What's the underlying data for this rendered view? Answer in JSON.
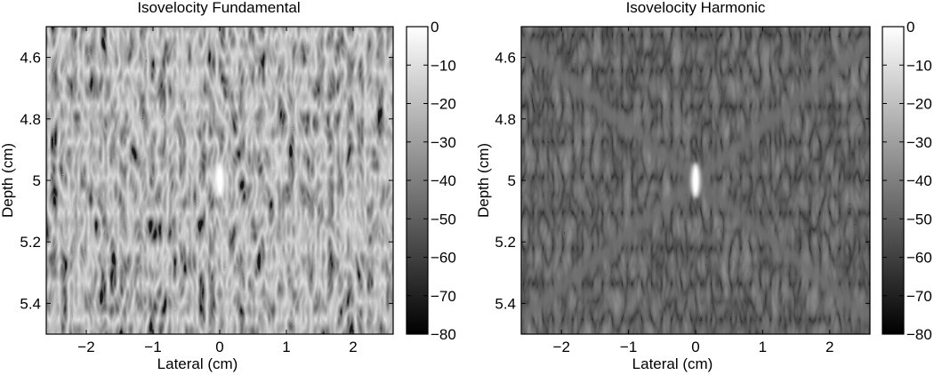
{
  "chart_data": [
    {
      "type": "heatmap",
      "title": "Isovelocity Fundamental",
      "xlabel": "Lateral (cm)",
      "ylabel": "Depth (cm)",
      "xlim": [
        -2.6,
        2.6
      ],
      "ylim": [
        4.5,
        5.5
      ],
      "y_reversed": true,
      "xticks": [
        -2,
        -1,
        0,
        1,
        2
      ],
      "xtick_labels": [
        "−2",
        "−1",
        "0",
        "1",
        "2"
      ],
      "yticks": [
        4.6,
        4.8,
        5.0,
        5.2,
        5.4
      ],
      "ytick_labels": [
        "4.6",
        "4.8",
        "5",
        "5.2",
        "5.4"
      ],
      "colorbar": {
        "range": [
          -80,
          0
        ],
        "colormap": "gray",
        "ticks": [
          0,
          -10,
          -20,
          -30,
          -40,
          -50,
          -60,
          -70,
          -80
        ],
        "tick_labels": [
          "0",
          "−10",
          "−20",
          "−30",
          "−40",
          "−50",
          "−60",
          "−70",
          "−80"
        ]
      },
      "features": {
        "background": "speckle",
        "background_level_db": -35,
        "bright_point": {
          "x": 0,
          "y": 5.0,
          "level_db": 0
        }
      }
    },
    {
      "type": "heatmap",
      "title": "Isovelocity Harmonic",
      "xlabel": "Lateral (cm)",
      "ylabel": "Depth (cm)",
      "xlim": [
        -2.6,
        2.6
      ],
      "ylim": [
        4.5,
        5.5
      ],
      "y_reversed": true,
      "xticks": [
        -2,
        -1,
        0,
        1,
        2
      ],
      "xtick_labels": [
        "−2",
        "−1",
        "0",
        "1",
        "2"
      ],
      "yticks": [
        4.6,
        4.8,
        5.0,
        5.2,
        5.4
      ],
      "ytick_labels": [
        "4.6",
        "4.8",
        "5",
        "5.2",
        "5.4"
      ],
      "colorbar": {
        "range": [
          -80,
          0
        ],
        "colormap": "gray",
        "ticks": [
          0,
          -10,
          -20,
          -30,
          -40,
          -50,
          -60,
          -70,
          -80
        ],
        "tick_labels": [
          "0",
          "−10",
          "−20",
          "−30",
          "−40",
          "−50",
          "−60",
          "−70",
          "−80"
        ]
      },
      "features": {
        "background": "dark speckle",
        "background_level_db": -65,
        "bright_point": {
          "x": 0,
          "y": 5.0,
          "level_db": 0
        },
        "x_pattern": {
          "center": [
            0,
            5.0
          ],
          "ends": [
            [
              -2.6,
              4.55
            ],
            [
              2.6,
              4.55
            ],
            [
              -2.6,
              5.45
            ],
            [
              2.6,
              5.45
            ]
          ],
          "level_db": -45
        }
      }
    }
  ]
}
